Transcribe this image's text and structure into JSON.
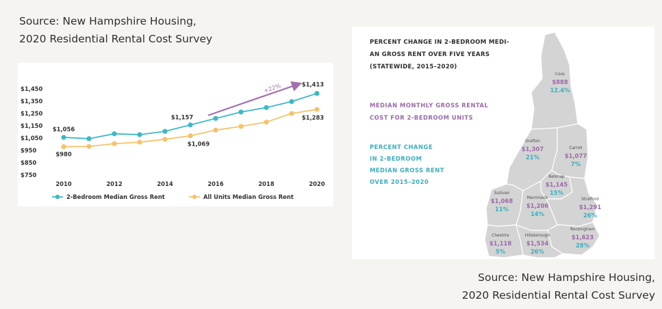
{
  "source_top": {
    "line1": "Source: New Hampshire Housing,",
    "line2": "2020 Residential Rental Cost Survey"
  },
  "source_bottom": {
    "line1": "Source: New Hampshire Housing,",
    "line2": "2020 Residential Rental Cost Survey"
  },
  "colors": {
    "teal": "#3db8c6",
    "gold": "#f5c26b",
    "purple": "#a36fae",
    "map_gray": "#d4d4d4"
  },
  "chart_data": [
    {
      "type": "line",
      "x": [
        2010,
        2011,
        2012,
        2013,
        2014,
        2015,
        2016,
        2017,
        2018,
        2019,
        2020
      ],
      "series": [
        {
          "name": "2-Bedroom Median Gross Rent",
          "color": "#3db8c6",
          "values": [
            1056,
            1045,
            1085,
            1078,
            1105,
            1157,
            1210,
            1262,
            1298,
            1347,
            1413
          ]
        },
        {
          "name": "All Units Median Gross Rent",
          "color": "#f5c26b",
          "values": [
            980,
            982,
            1005,
            1017,
            1040,
            1069,
            1115,
            1145,
            1180,
            1250,
            1283
          ]
        }
      ],
      "xticks": [
        "2010",
        "2012",
        "2014",
        "2016",
        "2018",
        "2020"
      ],
      "yticks": [
        "$750",
        "$850",
        "$950",
        "$1,050",
        "$1,150",
        "$1,250",
        "$1,350",
        "$1,450"
      ],
      "ylim": [
        750,
        1450
      ],
      "xlim": [
        2010,
        2020
      ],
      "data_labels": [
        {
          "text": "$1,056",
          "series": 0,
          "x": 2010
        },
        {
          "text": "$980",
          "series": 1,
          "x": 2010
        },
        {
          "text": "$1,157",
          "series": 0,
          "x": 2015
        },
        {
          "text": "$1,069",
          "series": 1,
          "x": 2015
        },
        {
          "text": "$1,413",
          "series": 0,
          "x": 2020
        },
        {
          "text": "$1,283",
          "series": 1,
          "x": 2020
        }
      ],
      "annotation": "+22%",
      "legend_position": "bottom",
      "grid": false
    }
  ],
  "map": {
    "title_lines": [
      "PERCENT CHANGE IN 2-BEDROOM MEDI-",
      "AN GROSS RENT OVER FIVE YEARS",
      "(STATEWIDE, 2015–2020)"
    ],
    "legend_rent_lines": [
      "MEDIAN MONTHLY GROSS RENTAL",
      "COST FOR 2-BEDROOM UNITS"
    ],
    "legend_pct_lines": [
      "PERCENT CHANGE",
      "IN 2-BEDROOM",
      "MEDIAN GROSS RENT",
      "OVER 2015–2020"
    ],
    "counties": [
      {
        "name": "Coos",
        "rent": "$888",
        "pct": "12.4%"
      },
      {
        "name": "Grafton",
        "rent": "$1,307",
        "pct": "21%"
      },
      {
        "name": "Carroll",
        "rent": "$1,077",
        "pct": "7%"
      },
      {
        "name": "Belknap",
        "rent": "$1,145",
        "pct": "15%"
      },
      {
        "name": "Sullivan",
        "rent": "$1,068",
        "pct": "11%"
      },
      {
        "name": "Merrimack",
        "rent": "$1,206",
        "pct": "14%"
      },
      {
        "name": "Strafford",
        "rent": "$1,291",
        "pct": "26%"
      },
      {
        "name": "Rockingham",
        "rent": "$1,623",
        "pct": "28%"
      },
      {
        "name": "Cheshire",
        "rent": "$1,118",
        "pct": "5%"
      },
      {
        "name": "Hillsborough",
        "rent": "$1,534",
        "pct": "26%"
      }
    ]
  }
}
